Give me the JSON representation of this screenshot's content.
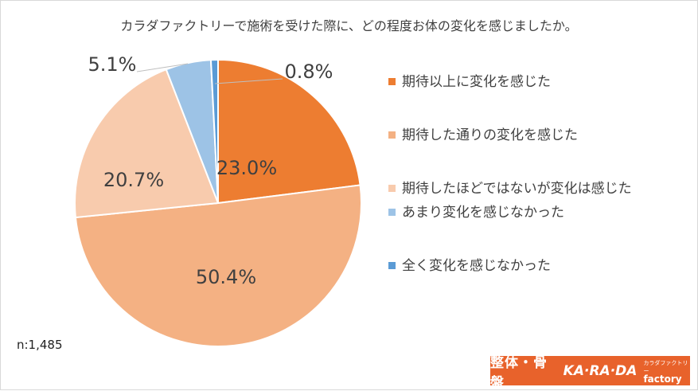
{
  "title": "カラダファクトリーで施術を受けた際に、どの程度お体の変化を感じましたか。",
  "sample_size": "n:1,485",
  "logo": {
    "jp_text": "整体・骨盤",
    "en_text": "KA·RA·DA",
    "sub_kana": "カラダファクトリー",
    "sub_word": "factory"
  },
  "chart_data": {
    "type": "pie",
    "title": "カラダファクトリーで施術を受けた際に、どの程度お体の変化を感じましたか。",
    "categories": [
      "期待以上に変化を感じた",
      "期待した通りの変化を感じた",
      "期待したほどではないが変化は感じた",
      "あまり変化を感じなかった",
      "全く変化を感じなかった"
    ],
    "values": [
      23.0,
      50.4,
      20.7,
      5.1,
      0.8
    ],
    "labels": [
      "23.0%",
      "50.4%",
      "20.7%",
      "5.1%",
      "0.8%"
    ],
    "colors": [
      "#ed7d31",
      "#f4b183",
      "#f8cbad",
      "#9dc3e6",
      "#5b9bd5"
    ],
    "legend": "right",
    "start_angle": "top-clockwise"
  }
}
